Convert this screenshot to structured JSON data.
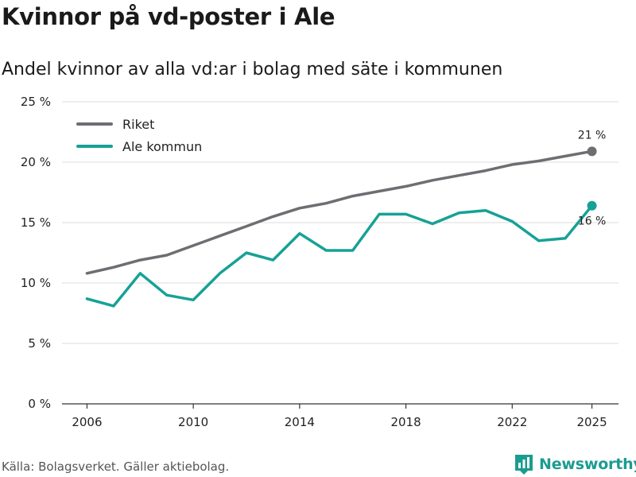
{
  "header": {
    "title": "Kvinnor på vd-poster i Ale",
    "subtitle": "Andel kvinnor av alla vd:ar i bolag med säte i kommunen"
  },
  "footer": {
    "source": "Källa: Bolagsverket. Gäller aktiebolag.",
    "brand": "Newsworthy"
  },
  "colors": {
    "riket": "#6e6d72",
    "ale": "#17a196",
    "grid": "#dddddd",
    "axis": "#333333"
  },
  "icons": {
    "brand_logo": "bar-chart-flag-icon"
  },
  "chart_data": {
    "type": "line",
    "x": [
      2006,
      2007,
      2008,
      2009,
      2010,
      2011,
      2012,
      2013,
      2014,
      2015,
      2016,
      2017,
      2018,
      2019,
      2020,
      2021,
      2022,
      2023,
      2024,
      2025
    ],
    "x_ticks": [
      2006,
      2010,
      2014,
      2018,
      2022,
      2025
    ],
    "x_tick_labels": [
      "2006",
      "2010",
      "2014",
      "2018",
      "2022",
      "2025"
    ],
    "ylim": [
      0,
      25
    ],
    "y_ticks": [
      0,
      5,
      10,
      15,
      20,
      25
    ],
    "y_tick_labels": [
      "0 %",
      "5 %",
      "10 %",
      "15 %",
      "20 %",
      "25 %"
    ],
    "grid": true,
    "legend_position": "top-left",
    "series": [
      {
        "name": "Riket",
        "color": "#6e6d72",
        "values": [
          10.8,
          11.3,
          11.9,
          12.3,
          13.1,
          13.9,
          14.7,
          15.5,
          16.2,
          16.6,
          17.2,
          17.6,
          18.0,
          18.5,
          18.9,
          19.3,
          19.8,
          20.1,
          20.5,
          20.9
        ],
        "end_label": "21 %"
      },
      {
        "name": "Ale kommun",
        "color": "#17a196",
        "values": [
          8.7,
          8.1,
          10.8,
          9.0,
          8.6,
          10.8,
          12.5,
          11.9,
          14.1,
          12.7,
          12.7,
          15.7,
          15.7,
          14.9,
          15.8,
          16.0,
          15.1,
          13.5,
          13.7,
          16.4
        ],
        "end_label": "16 %"
      }
    ]
  }
}
